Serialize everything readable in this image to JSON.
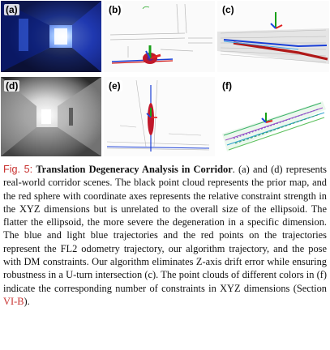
{
  "figure": {
    "panels": [
      {
        "id": "a",
        "label": "(a)"
      },
      {
        "id": "b",
        "label": "(b)"
      },
      {
        "id": "c",
        "label": "(c)"
      },
      {
        "id": "d",
        "label": "(d)"
      },
      {
        "id": "e",
        "label": "(e)"
      },
      {
        "id": "f",
        "label": "(f)"
      }
    ],
    "caption": {
      "label": "Fig. 5:",
      "title": "Translation Degeneracy Analysis in Corridor",
      "body_before_ref": ". (a) and (d) represents real-world corridor scenes. The black point cloud represents the prior map, and the red sphere with coordinate axes represents the relative constraint strength in the XYZ dimensions but is unrelated to the overall size of the ellipsoid. The flatter the ellip­soid, the more severe the degeneration in a specific dimension. The blue and light blue trajectories and the red points on the trajectories represent the FL2 odometry trajectory, our algorithm trajectory, and the pose with DM constraints. Our algorithm eliminates Z-axis drift error while ensuring robustness in a U-turn intersection (c). The point clouds of different colors in (f) indicate the corresponding number of constraints in XYZ dimensions (Section ",
      "section_ref": "VI-B",
      "body_after_ref": ")."
    },
    "colors": {
      "fig_label": "#c8312f",
      "prior_map": "#222222",
      "fl2_trajectory": "#1a3fd6",
      "our_trajectory": "#4aa8e8",
      "dm_points": "#d11a1a",
      "axis_x": "#e02020",
      "axis_y": "#18a018",
      "axis_z": "#1c48e0"
    }
  }
}
